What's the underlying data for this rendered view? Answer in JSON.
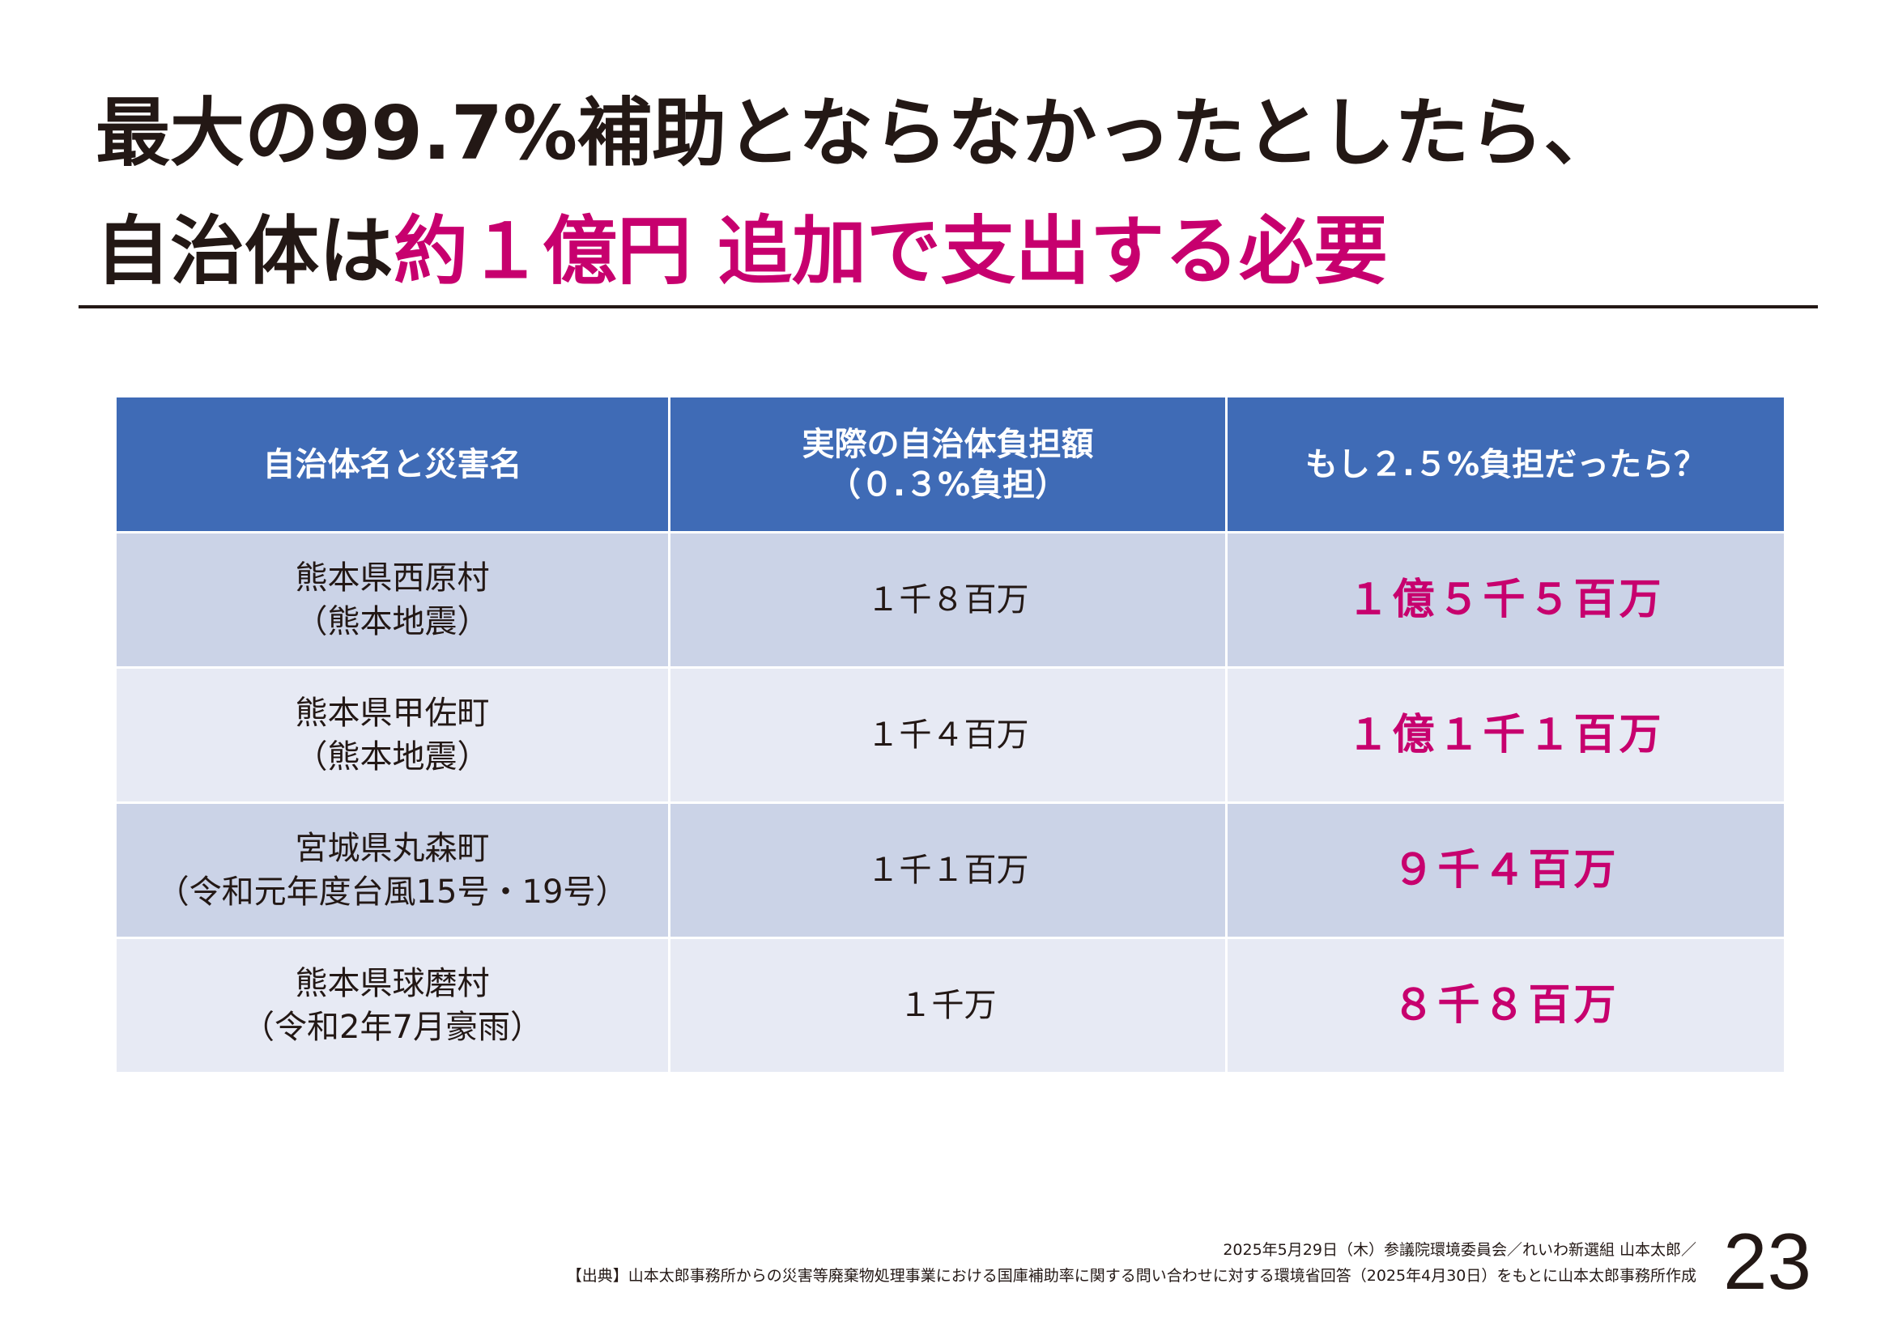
{
  "title": {
    "line1": "最大の99.7%補助とならなかったとしたら、",
    "line2_prefix": "自治体は",
    "line2_accent": "約１億円  追加で支出する必要"
  },
  "table": {
    "headers": [
      {
        "line1": "自治体名と災害名",
        "line2": ""
      },
      {
        "line1": "実際の自治体負担額",
        "line2": "（０.３%負担）"
      },
      {
        "line1": "もし２.５%負担だったら？",
        "line2": ""
      }
    ],
    "rows": [
      {
        "municipality": "熊本県西原村",
        "disaster": "（熊本地震）",
        "actual": "１千８百万",
        "hypothetical": "１億５千５百万"
      },
      {
        "municipality": "熊本県甲佐町",
        "disaster": "（熊本地震）",
        "actual": "１千４百万",
        "hypothetical": "１億１千１百万"
      },
      {
        "municipality": "宮城県丸森町",
        "disaster": "（令和元年度台風15号・19号）",
        "actual": "１千１百万",
        "hypothetical": "９千４百万"
      },
      {
        "municipality": "熊本県球磨村",
        "disaster": "（令和2年7月豪雨）",
        "actual": "１千万",
        "hypothetical": "８千８百万"
      }
    ]
  },
  "footer": {
    "line1": "2025年5月29日（木）参議院環境委員会／れいわ新選組 山本太郎／",
    "line2": "【出典】山本太郎事務所からの災害等廃棄物処理事業における国庫補助率に関する問い合わせに対する環境省回答（2025年4月30日）をもとに山本太郎事務所作成"
  },
  "page_number": "23",
  "colors": {
    "accent": "#c7006e",
    "header_bg": "#3f6bb6",
    "row_odd_bg": "#cbd3e7",
    "row_even_bg": "#e7eaf4",
    "text": "#231815"
  }
}
